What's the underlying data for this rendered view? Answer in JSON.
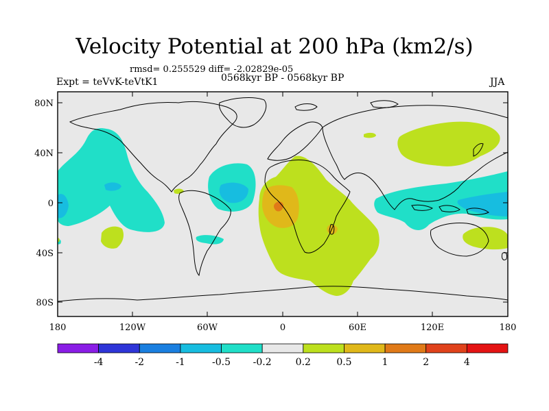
{
  "title": "Velocity Potential at 200 hPa (km2/s)",
  "stats_line": "rmsd= 0.255529 diff= -2.02829e-05",
  "left_label": "Expt = teVvK-teVtK1",
  "center_label": "0568kyr BP - 0568kyr BP",
  "right_label": "JJA",
  "lat_ticks": [
    "80N",
    "40N",
    "0",
    "40S",
    "80S"
  ],
  "lon_ticks": [
    "180",
    "120W",
    "60W",
    "0",
    "60E",
    "120E",
    "180"
  ],
  "colorbar": {
    "levels": [
      "-4",
      "-2",
      "-1",
      "-0.5",
      "-0.2",
      "0.2",
      "0.5",
      "1",
      "2",
      "4"
    ],
    "colors": [
      "#8a1de6",
      "#2e35d8",
      "#1a7fe0",
      "#17bde0",
      "#20dfc8",
      "#e8e8e8",
      "#bde01e",
      "#e0b81a",
      "#e07a18",
      "#e0421b",
      "#e41313"
    ]
  },
  "map_colors": {
    "background": "#e8e8e8",
    "cyan_light": "#20dfc8",
    "cyan": "#17bde0",
    "yellowgreen": "#bde01e",
    "orange": "#e0b81a",
    "darkorange": "#e07a18"
  }
}
